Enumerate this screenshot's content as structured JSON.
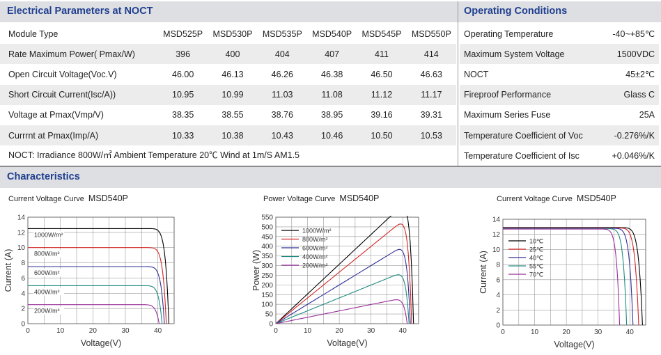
{
  "electrical": {
    "title": "Electrical Parameters at NOCT",
    "header_label": "Module Type",
    "models": [
      "MSD525P",
      "MSD530P",
      "MSD535P",
      "MSD540P",
      "MSD545P",
      "MSD550P"
    ],
    "rows": [
      {
        "label": "Rate Maximum Power( Pmax/W)",
        "values": [
          "396",
          "400",
          "404",
          "407",
          "411",
          "414"
        ]
      },
      {
        "label": "Open Circuit Voltage(Voc.V)",
        "values": [
          "46.00",
          "46.13",
          "46.26",
          "46.38",
          "46.50",
          "46.63"
        ]
      },
      {
        "label": "Short Circuit Current(Isc/A))",
        "values": [
          "10.95",
          "10.99",
          "11.03",
          "11.08",
          "11.12",
          "11.17"
        ]
      },
      {
        "label": "Voltage at Pmax(Vmp/V)",
        "values": [
          "38.35",
          "38.55",
          "38.76",
          "38.95",
          "39.16",
          "39.31"
        ]
      },
      {
        "label": "Currrnt at Pmax(Imp/A)",
        "values": [
          "10.33",
          "10.38",
          "10.43",
          "10.46",
          "10.50",
          "10.53"
        ]
      }
    ],
    "note": "NOCT: Irradiance 800W/㎡ Ambient Temperature 20℃ Wind at 1m/S AM1.5"
  },
  "operating": {
    "title": "Operating Conditions",
    "rows": [
      {
        "label": "Operating Temperature",
        "value": "-40~+85℃"
      },
      {
        "label": "Maximum System Voltage",
        "value": "1500VDC"
      },
      {
        "label": "NOCT",
        "value": "45±2℃"
      },
      {
        "label": "Fireproof  Performance",
        "value": "Glass C"
      },
      {
        "label": "Maximum Series Fuse",
        "value": "25A"
      },
      {
        "label": "Temperature Coefficient of Voc",
        "value": "-0.276%/K"
      },
      {
        "label": "Temperature Coefficient of Isc",
        "value": "+0.046%/K"
      }
    ]
  },
  "characteristics": {
    "title": "Characteristics"
  },
  "colors": {
    "header_text": "#1f3f8f",
    "header_bg": "#dedfe3",
    "row_alt": "#ececec"
  },
  "chart_data": [
    {
      "type": "line",
      "title": "Current Voltage Curve",
      "model": "MSD540P",
      "xlabel": "Voltage(V)",
      "ylabel": "Current (A)",
      "xlim": [
        0,
        45
      ],
      "ylim": [
        0,
        14
      ],
      "xticks": [
        0,
        10,
        20,
        30,
        40
      ],
      "yticks": [
        0,
        2,
        4,
        6,
        8,
        10,
        12,
        14
      ],
      "curve_model": "iv",
      "series": [
        {
          "name": "1000W/m²",
          "color": "#000000",
          "isc": 12.5,
          "voc": 43.4,
          "knee": 0.8
        },
        {
          "name": "800W/m²",
          "color": "#d42424",
          "isc": 10.0,
          "voc": 42.6,
          "knee": 0.8
        },
        {
          "name": "600W/m²",
          "color": "#2f2f9a",
          "isc": 7.5,
          "voc": 42.0,
          "knee": 0.8
        },
        {
          "name": "400W/m²",
          "color": "#1e8a82",
          "isc": 5.0,
          "voc": 41.3,
          "knee": 0.8
        },
        {
          "name": "200W/m²",
          "color": "#9a2f9a",
          "isc": 2.5,
          "voc": 40.4,
          "knee": 0.8
        }
      ]
    },
    {
      "type": "line",
      "title": "Power Voltage Curve",
      "model": "MSD540P",
      "xlabel": "Voltage(V)",
      "ylabel": "Power (W)",
      "xlim": [
        0,
        45
      ],
      "ylim": [
        0,
        550
      ],
      "xticks": [
        0,
        10,
        20,
        30,
        40
      ],
      "yticks": [
        0,
        50,
        100,
        150,
        200,
        250,
        300,
        350,
        400,
        450,
        500,
        550
      ],
      "curve_model": "pv",
      "series": [
        {
          "name": "1000W/m²",
          "color": "#000000",
          "isc": 15.35,
          "voc": 43.4,
          "knee": 0.8
        },
        {
          "name": "800W/m²",
          "color": "#d42424",
          "isc": 13.3,
          "voc": 42.8,
          "knee": 0.8
        },
        {
          "name": "600W/m²",
          "color": "#2f2f9a",
          "isc": 10.0,
          "voc": 42.4,
          "knee": 0.8
        },
        {
          "name": "400W/m²",
          "color": "#1e8a82",
          "isc": 6.65,
          "voc": 42.0,
          "knee": 0.8
        },
        {
          "name": "200W/m²",
          "color": "#9a2f9a",
          "isc": 3.3,
          "voc": 41.4,
          "knee": 0.8
        }
      ]
    },
    {
      "type": "line",
      "title": "Current Voltage Curve",
      "model": "MSD540P",
      "xlabel": "Voltage(V)",
      "ylabel": "Current (A)",
      "xlim": [
        0,
        45
      ],
      "ylim": [
        0,
        14
      ],
      "xticks": [
        0,
        10,
        20,
        30,
        40
      ],
      "yticks": [
        0,
        2,
        4,
        6,
        8,
        10,
        12,
        14
      ],
      "curve_model": "iv",
      "series": [
        {
          "name": "10℃",
          "color": "#000000",
          "isc": 12.9,
          "voc": 44.0,
          "knee": 0.78
        },
        {
          "name": "25℃",
          "color": "#d42424",
          "isc": 12.85,
          "voc": 42.8,
          "knee": 0.78
        },
        {
          "name": "40℃",
          "color": "#2f2f9a",
          "isc": 12.8,
          "voc": 41.0,
          "knee": 0.78
        },
        {
          "name": "55℃",
          "color": "#1e8a82",
          "isc": 12.75,
          "voc": 39.0,
          "knee": 0.78
        },
        {
          "name": "70℃",
          "color": "#9a2f9a",
          "isc": 12.7,
          "voc": 36.8,
          "knee": 0.78
        }
      ]
    }
  ]
}
